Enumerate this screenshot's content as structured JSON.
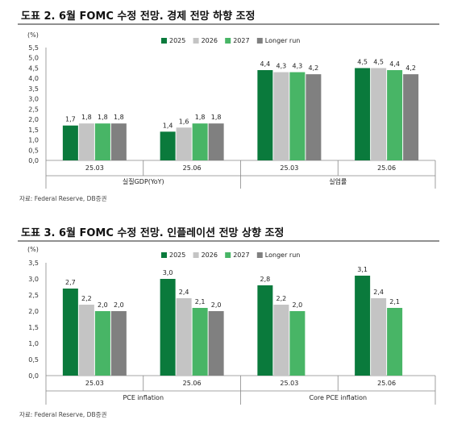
{
  "chart_data": [
    {
      "type": "bar",
      "title": "도표 2. 6월 FOMC 수정 전망. 경제 전망 하향 조정",
      "unit_label": "(%)",
      "ylim": [
        0,
        5.5
      ],
      "yticks": [
        "0,0",
        "0,5",
        "1,0",
        "1,5",
        "2,0",
        "2,5",
        "3,0",
        "3,5",
        "4,0",
        "4,5",
        "5,0",
        "5,5"
      ],
      "legend_position": "top-right",
      "series": [
        {
          "name": "2025",
          "color": "#0a7a3c"
        },
        {
          "name": "2026",
          "color": "#c4c4c4"
        },
        {
          "name": "2027",
          "color": "#48b566"
        },
        {
          "name": "Longer run",
          "color": "#808080"
        }
      ],
      "groups": [
        {
          "label": "실질GDP(YoY)",
          "categories": [
            {
              "label": "25.03",
              "values": [
                1.7,
                1.8,
                1.8,
                1.8
              ],
              "data_labels": [
                "1,7",
                "1,8",
                "1,8",
                "1,8"
              ]
            },
            {
              "label": "25.06",
              "values": [
                1.4,
                1.6,
                1.8,
                1.8
              ],
              "data_labels": [
                "1,4",
                "1,6",
                "1,8",
                "1,8"
              ]
            }
          ]
        },
        {
          "label": "실업률",
          "categories": [
            {
              "label": "25.03",
              "values": [
                4.4,
                4.3,
                4.3,
                4.2
              ],
              "data_labels": [
                "4,4",
                "4,3",
                "4,3",
                "4,2"
              ]
            },
            {
              "label": "25.06",
              "values": [
                4.5,
                4.5,
                4.4,
                4.2
              ],
              "data_labels": [
                "4,5",
                "4,5",
                "4,4",
                "4,2"
              ]
            }
          ]
        }
      ],
      "source": "자료: Federal Reserve, DB증권"
    },
    {
      "type": "bar",
      "title": "도표 3. 6월 FOMC 수정 전망. 인플레이션 전망 상향 조정",
      "unit_label": "(%)",
      "ylim": [
        0,
        3.5
      ],
      "yticks": [
        "0,0",
        "0,5",
        "1,0",
        "1,5",
        "2,0",
        "2,5",
        "3,0",
        "3,5"
      ],
      "legend_position": "top-center",
      "series": [
        {
          "name": "2025",
          "color": "#0a7a3c"
        },
        {
          "name": "2026",
          "color": "#c4c4c4"
        },
        {
          "name": "2027",
          "color": "#48b566"
        },
        {
          "name": "Longer run",
          "color": "#808080"
        }
      ],
      "groups": [
        {
          "label": "PCE inflation",
          "categories": [
            {
              "label": "25.03",
              "values": [
                2.7,
                2.2,
                2.0,
                2.0
              ],
              "data_labels": [
                "2,7",
                "2,2",
                "2,0",
                "2,0"
              ]
            },
            {
              "label": "25.06",
              "values": [
                3.0,
                2.4,
                2.1,
                2.0
              ],
              "data_labels": [
                "3,0",
                "2,4",
                "2,1",
                "2,0"
              ]
            }
          ]
        },
        {
          "label": "Core PCE inflation",
          "categories": [
            {
              "label": "25.03",
              "values": [
                2.8,
                2.2,
                2.0,
                null
              ],
              "data_labels": [
                "2,8",
                "2,2",
                "2,0",
                ""
              ]
            },
            {
              "label": "25.06",
              "values": [
                3.1,
                2.4,
                2.1,
                null
              ],
              "data_labels": [
                "3,1",
                "2,4",
                "2,1",
                ""
              ]
            }
          ]
        }
      ],
      "source": "자료: Federal Reserve, DB증권"
    }
  ]
}
